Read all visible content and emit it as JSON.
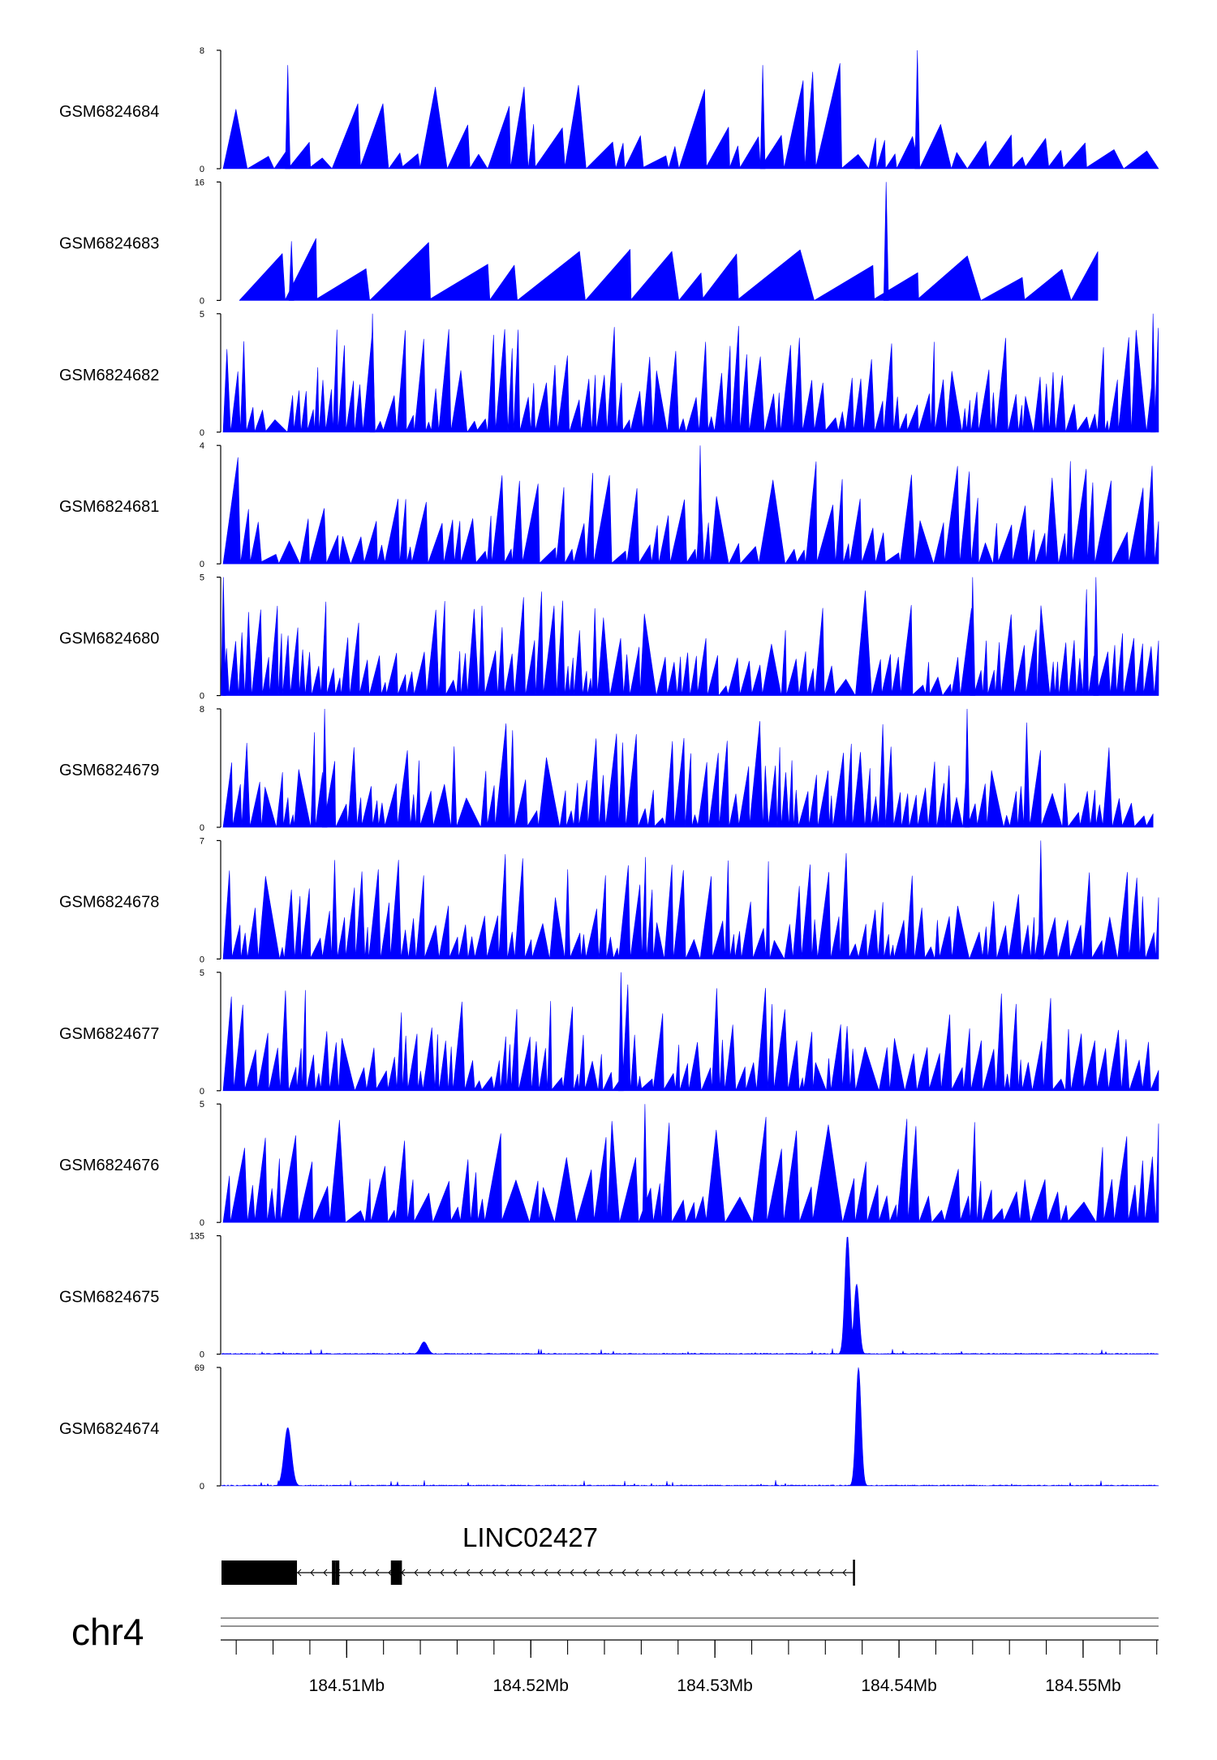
{
  "chart_data": {
    "type": "area",
    "chromosome": "chr4",
    "x_range_mb": [
      184.5032,
      184.5541
    ],
    "x_ticks": [
      {
        "value": 184.51,
        "label": "184.51Mb"
      },
      {
        "value": 184.52,
        "label": "184.52Mb"
      },
      {
        "value": 184.53,
        "label": "184.53Mb"
      },
      {
        "value": 184.54,
        "label": "184.54Mb"
      },
      {
        "value": 184.55,
        "label": "184.55Mb"
      }
    ],
    "fill_color": "#0000ff",
    "series": [
      {
        "name": "GSM6824684",
        "ymax": 8,
        "ymax_label": "8",
        "ymin_label": "0",
        "profile": "sparse",
        "seed": 11,
        "peaks": [
          [
            184.5068,
            7
          ],
          [
            184.5326,
            7
          ],
          [
            184.541,
            8
          ]
        ],
        "end": 184.5541
      },
      {
        "name": "GSM6824683",
        "ymax": 16,
        "ymax_label": "16",
        "ymin_label": "0",
        "profile": "verysparse",
        "seed": 23,
        "peaks": [
          [
            184.507,
            8
          ],
          [
            184.5393,
            16
          ]
        ],
        "end": 184.5508
      },
      {
        "name": "GSM6824682",
        "ymax": 5,
        "ymax_label": "5",
        "ymin_label": "0",
        "profile": "dense",
        "seed": 37,
        "peaks": [
          [
            184.5114,
            5
          ],
          [
            184.5538,
            5
          ]
        ],
        "end": 184.5541
      },
      {
        "name": "GSM6824681",
        "ymax": 4,
        "ymax_label": "4",
        "ymin_label": "0",
        "profile": "mid",
        "seed": 41,
        "peaks": [
          [
            184.5292,
            4
          ]
        ],
        "end": 184.5541
      },
      {
        "name": "GSM6824680",
        "ymax": 5,
        "ymax_label": "5",
        "ymin_label": "0",
        "profile": "dense",
        "seed": 53,
        "peaks": [
          [
            184.5033,
            5
          ],
          [
            184.5507,
            5
          ],
          [
            184.544,
            5
          ]
        ],
        "end": 184.5541
      },
      {
        "name": "GSM6824679",
        "ymax": 8,
        "ymax_label": "8",
        "ymin_label": "0",
        "profile": "dense",
        "seed": 67,
        "peaks": [
          [
            184.5088,
            8
          ],
          [
            184.5437,
            8
          ]
        ],
        "end": 184.5538
      },
      {
        "name": "GSM6824678",
        "ymax": 7,
        "ymax_label": "7",
        "ymin_label": "0",
        "profile": "dense",
        "seed": 71,
        "peaks": [
          [
            184.5477,
            7
          ]
        ],
        "end": 184.5541
      },
      {
        "name": "GSM6824677",
        "ymax": 5,
        "ymax_label": "5",
        "ymin_label": "0",
        "profile": "dense",
        "seed": 83,
        "peaks": [
          [
            184.5249,
            5
          ]
        ],
        "end": 184.5541
      },
      {
        "name": "GSM6824676",
        "ymax": 5,
        "ymax_label": "5",
        "ymin_label": "0",
        "profile": "mid",
        "seed": 97,
        "peaks": [
          [
            184.5262,
            5
          ]
        ],
        "end": 184.5541
      },
      {
        "name": "GSM6824675",
        "ymax": 135,
        "ymax_label": "135",
        "ymin_label": "0",
        "profile": "flat",
        "seed": 101,
        "peaks": [
          [
            184.5142,
            14
          ],
          [
            184.5372,
            135
          ],
          [
            184.5377,
            80
          ]
        ],
        "end": 184.5541
      },
      {
        "name": "GSM6824674",
        "ymax": 69,
        "ymax_label": "69",
        "ymin_label": "0",
        "profile": "flat",
        "seed": 113,
        "peaks": [
          [
            184.5068,
            34
          ],
          [
            184.5378,
            69
          ]
        ],
        "end": 184.5541
      }
    ],
    "gene": {
      "name": "LINC02427",
      "strand": "-",
      "start_mb": 184.5032,
      "end_mb": 184.5376,
      "exons_mb": [
        [
          184.5032,
          184.5073
        ],
        [
          184.5092,
          184.5094
        ],
        [
          184.5094,
          184.5096
        ],
        [
          184.5124,
          184.513
        ],
        [
          184.5375,
          184.5376
        ]
      ]
    }
  }
}
